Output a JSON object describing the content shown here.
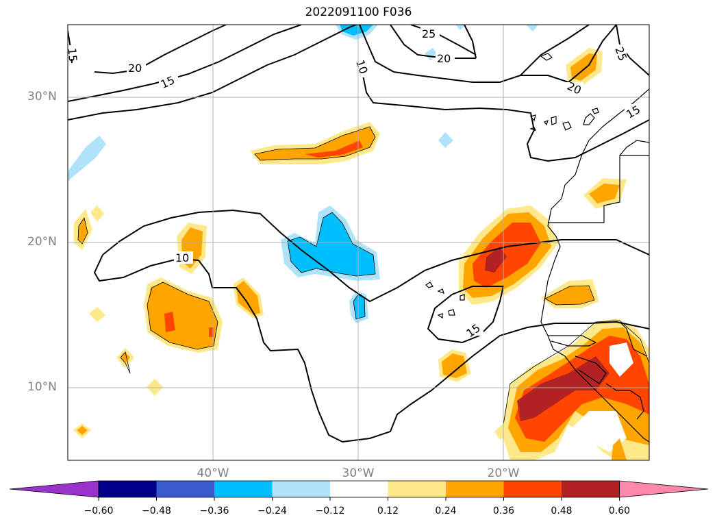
{
  "title": "2022091100 F036",
  "map": {
    "lat_labels": [
      "30°N",
      "20°N",
      "10°N"
    ],
    "lon_labels": [
      "40°W",
      "30°W",
      "20°W"
    ],
    "grid": true,
    "contour_labels": [
      "15",
      "20",
      "15",
      "10",
      "25",
      "20",
      "25",
      "20",
      "15",
      "10",
      "15"
    ]
  },
  "colorbar": {
    "ticks": [
      "−0.60",
      "−0.48",
      "−0.36",
      "−0.24",
      "−0.12",
      "0.12",
      "0.24",
      "0.36",
      "0.48",
      "0.60"
    ],
    "colors": [
      "#9933cc",
      "#00008b",
      "#3a5bcc",
      "#00bfff",
      "#aee3fa",
      "#ffffff",
      "#ffe88a",
      "#ffa500",
      "#ff4500",
      "#b22222",
      "#ff88aa"
    ]
  }
}
